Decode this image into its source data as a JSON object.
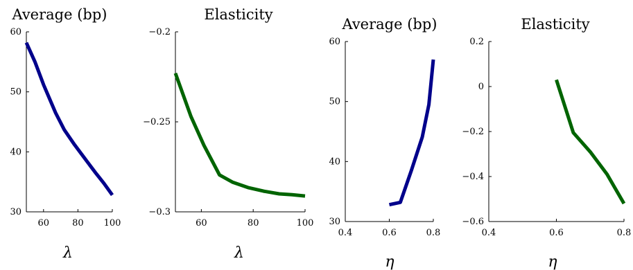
{
  "chart_data": [
    {
      "type": "line",
      "title": "Average (bp)",
      "xlabel": "λ",
      "ylabel": "",
      "xlim": [
        50,
        100
      ],
      "ylim": [
        30,
        60
      ],
      "xticks": [
        60,
        80,
        100
      ],
      "xtick_labels": [
        "60",
        "80",
        "100"
      ],
      "yticks": [
        30,
        40,
        50,
        60
      ],
      "ytick_labels": [
        "30",
        "40",
        "50",
        "60"
      ],
      "color": "#00008b",
      "grid": false,
      "series": [
        {
          "x": [
            50,
            55,
            60,
            67,
            72,
            78,
            84,
            90,
            95,
            100
          ],
          "y": [
            58.2,
            55.0,
            51.2,
            46.5,
            43.7,
            41.2,
            38.9,
            36.6,
            34.8,
            32.8
          ]
        }
      ]
    },
    {
      "type": "line",
      "title": "Elasticity",
      "xlabel": "λ",
      "ylabel": "",
      "xlim": [
        50,
        100
      ],
      "ylim": [
        -0.3,
        -0.2
      ],
      "xticks": [
        60,
        80,
        100
      ],
      "xtick_labels": [
        "60",
        "80",
        "100"
      ],
      "yticks": [
        -0.3,
        -0.25,
        -0.2
      ],
      "ytick_labels": [
        "−0.3",
        "−0.25",
        "−0.2"
      ],
      "color": "#006400",
      "grid": false,
      "series": [
        {
          "x": [
            50,
            56,
            61,
            67,
            72,
            78,
            84,
            90,
            95,
            100
          ],
          "y": [
            -0.223,
            -0.247,
            -0.263,
            -0.2795,
            -0.2835,
            -0.2865,
            -0.2885,
            -0.29,
            -0.2905,
            -0.2912
          ]
        }
      ]
    },
    {
      "type": "line",
      "title": "Average (bp)",
      "xlabel": "η",
      "ylabel": "",
      "xlim": [
        0.4,
        0.8
      ],
      "ylim": [
        30,
        60
      ],
      "xticks": [
        0.4,
        0.6,
        0.8
      ],
      "xtick_labels": [
        "0.4",
        "0.6",
        "0.8"
      ],
      "yticks": [
        30,
        40,
        50,
        60
      ],
      "ytick_labels": [
        "30",
        "40",
        "50",
        "60"
      ],
      "color": "#00008b",
      "grid": false,
      "series": [
        {
          "x": [
            0.6,
            0.65,
            0.7,
            0.75,
            0.78,
            0.8
          ],
          "y": [
            32.8,
            33.2,
            38.5,
            44.1,
            49.5,
            57.0
          ]
        }
      ]
    },
    {
      "type": "line",
      "title": "Elasticity",
      "xlabel": "η",
      "ylabel": "",
      "xlim": [
        0.4,
        0.8
      ],
      "ylim": [
        -0.6,
        0.2
      ],
      "xticks": [
        0.4,
        0.6,
        0.8
      ],
      "xtick_labels": [
        "0.4",
        "0.6",
        "0.8"
      ],
      "yticks": [
        -0.6,
        -0.4,
        -0.2,
        0,
        0.2
      ],
      "ytick_labels": [
        "−0.6",
        "−0.4",
        "−0.2",
        "0",
        "0.2"
      ],
      "color": "#006400",
      "grid": false,
      "series": [
        {
          "x": [
            0.6,
            0.65,
            0.7,
            0.75,
            0.8
          ],
          "y": [
            0.03,
            -0.205,
            -0.29,
            -0.39,
            -0.52
          ]
        }
      ]
    }
  ]
}
